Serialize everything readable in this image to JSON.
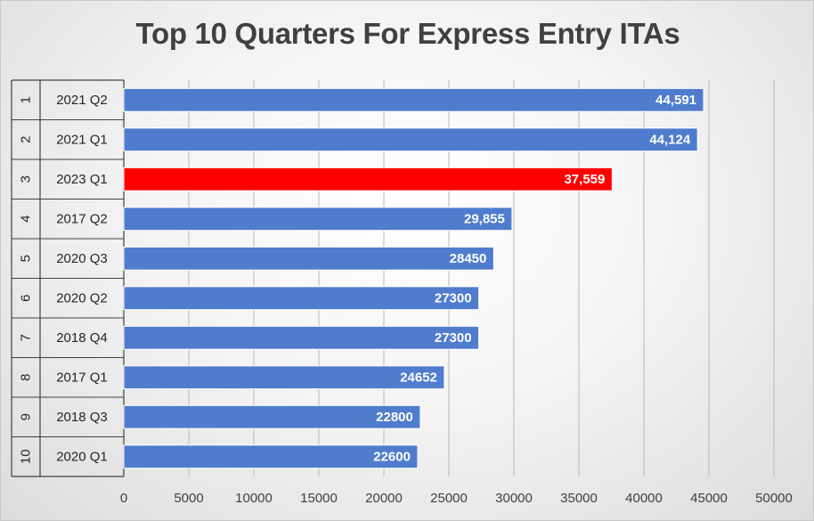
{
  "chart_data": {
    "type": "bar",
    "orientation": "horizontal",
    "title": "Top 10 Quarters For Express Entry ITAs",
    "ranks": [
      "1",
      "2",
      "3",
      "4",
      "5",
      "6",
      "7",
      "8",
      "9",
      "10"
    ],
    "categories": [
      "2021 Q2",
      "2021 Q1",
      "2023 Q1",
      "2017 Q2",
      "2020 Q3",
      "2020 Q2",
      "2018 Q4",
      "2017 Q1",
      "2018 Q3",
      "2020 Q1"
    ],
    "values": [
      44591,
      44124,
      37559,
      29855,
      28450,
      27300,
      27300,
      24652,
      22800,
      22600
    ],
    "data_labels": [
      "44,591",
      "44,124",
      "37,559",
      "29,855",
      "28450",
      "27300",
      "27300",
      "24652",
      "22800",
      "22600"
    ],
    "bar_colors": [
      "#4f7ccd",
      "#4f7ccd",
      "#ff0000",
      "#4f7ccd",
      "#4f7ccd",
      "#4f7ccd",
      "#4f7ccd",
      "#4f7ccd",
      "#4f7ccd",
      "#4f7ccd"
    ],
    "x_ticks": [
      "0",
      "5000",
      "10000",
      "15000",
      "20000",
      "25000",
      "30000",
      "35000",
      "40000",
      "45000",
      "50000"
    ],
    "xlim": [
      0,
      50000
    ],
    "vertical_grid": true,
    "xlabel": "",
    "ylabel": ""
  }
}
